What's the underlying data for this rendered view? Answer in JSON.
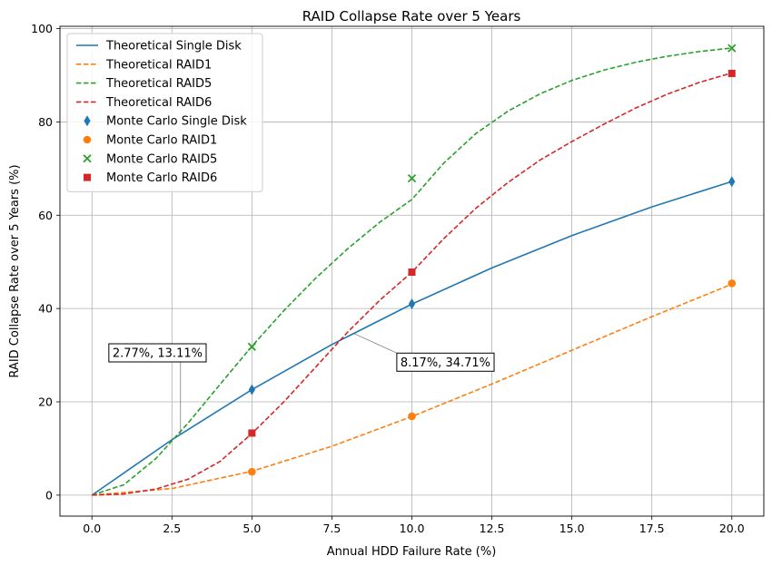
{
  "chart_data": {
    "type": "line",
    "title": "RAID Collapse Rate over 5 Years",
    "xlabel": "Annual HDD Failure Rate (%)",
    "ylabel": "RAID Collapse Rate over 5 Years (%)",
    "xlim": [
      -1,
      21
    ],
    "ylim": [
      -4.5,
      100.5
    ],
    "xticks": [
      0,
      2.5,
      5,
      7.5,
      10,
      12.5,
      15,
      17.5,
      20
    ],
    "xtick_labels": [
      "0.0",
      "2.5",
      "5.0",
      "7.5",
      "10.0",
      "12.5",
      "15.0",
      "17.5",
      "20.0"
    ],
    "yticks": [
      0,
      20,
      40,
      60,
      80,
      100
    ],
    "ytick_labels": [
      "0",
      "20",
      "40",
      "60",
      "80",
      "100"
    ],
    "grid": true,
    "legend_position": "top-left",
    "series": [
      {
        "name": "Theoretical Single Disk",
        "kind": "line",
        "style": "solid",
        "color": "#1f77b4",
        "x": [
          0,
          2.5,
          5,
          7.5,
          10,
          12.5,
          15,
          17.5,
          20
        ],
        "y": [
          0,
          11.88,
          22.62,
          32.29,
          40.95,
          48.71,
          55.63,
          61.79,
          67.23
        ]
      },
      {
        "name": "Theoretical RAID1",
        "kind": "line",
        "style": "dashed",
        "color": "#ff7f0e",
        "x": [
          0,
          2.5,
          5,
          7.5,
          10,
          12.5,
          15,
          17.5,
          20
        ],
        "y": [
          0,
          1.41,
          5.12,
          10.48,
          16.85,
          23.82,
          31.05,
          38.25,
          45.21
        ]
      },
      {
        "name": "Theoretical RAID5",
        "kind": "line",
        "style": "dashed",
        "color": "#2ca02c",
        "x": [
          0,
          1,
          2,
          3,
          4,
          5,
          6,
          7,
          8,
          9,
          10,
          11,
          12,
          13,
          14,
          15,
          16,
          17,
          18,
          19,
          20
        ],
        "y": [
          0,
          2.23,
          7.85,
          15.41,
          23.71,
          31.91,
          39.56,
          46.55,
          52.86,
          58.52,
          63.38,
          71.2,
          77.5,
          82.3,
          86.0,
          88.9,
          91.1,
          92.8,
          94.1,
          95.1,
          95.85
        ]
      },
      {
        "name": "Theoretical RAID6",
        "kind": "line",
        "style": "dashed",
        "color": "#d62728",
        "x": [
          0,
          1,
          2,
          3,
          4,
          5,
          6,
          7,
          8,
          9,
          10,
          11,
          12,
          13,
          14,
          15,
          16,
          17,
          18,
          19,
          20
        ],
        "y": [
          0,
          0.25,
          1.3,
          3.4,
          7.2,
          13.2,
          20.0,
          27.5,
          35.0,
          41.8,
          47.8,
          55.0,
          61.5,
          67.0,
          71.8,
          75.8,
          79.5,
          83.0,
          86.0,
          88.5,
          90.5
        ]
      },
      {
        "name": "Monte Carlo Single Disk",
        "kind": "scatter",
        "marker": "thin_diamond",
        "color": "#1f77b4",
        "x": [
          5,
          10,
          20
        ],
        "y": [
          22.6,
          41.0,
          67.2
        ]
      },
      {
        "name": "Monte Carlo RAID1",
        "kind": "scatter",
        "marker": "circle",
        "color": "#ff7f0e",
        "x": [
          5,
          10,
          20
        ],
        "y": [
          5.0,
          16.9,
          45.4
        ]
      },
      {
        "name": "Monte Carlo RAID5",
        "kind": "scatter",
        "marker": "x",
        "color": "#2ca02c",
        "x": [
          5,
          10,
          20
        ],
        "y": [
          31.8,
          67.9,
          95.8
        ]
      },
      {
        "name": "Monte Carlo RAID6",
        "kind": "scatter",
        "marker": "square",
        "color": "#d62728",
        "x": [
          5,
          10,
          20
        ],
        "y": [
          13.3,
          47.8,
          90.4
        ]
      }
    ],
    "annotations": [
      {
        "text": "2.77%, 13.11%",
        "point": [
          2.77,
          13.11
        ],
        "text_at": [
          0.5,
          30.5
        ]
      },
      {
        "text": "8.17%, 34.71%",
        "point": [
          8.17,
          34.71
        ],
        "text_at": [
          9.5,
          28.5
        ]
      }
    ]
  }
}
